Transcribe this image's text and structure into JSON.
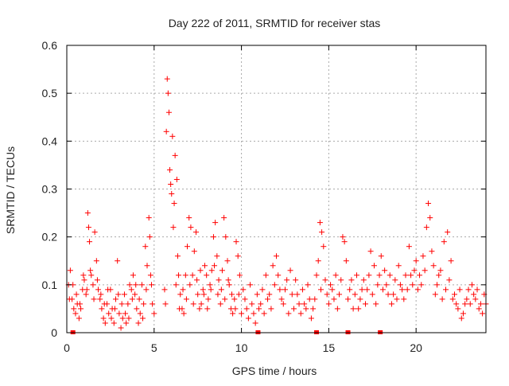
{
  "chart_data": {
    "type": "scatter",
    "title": "Day 222 of 2011, SRMTID for receiver stas",
    "xlabel": "GPS time / hours",
    "ylabel": "SRMTID / TECUs",
    "xlim": [
      0,
      24
    ],
    "ylim": [
      0,
      0.6
    ],
    "x_ticks": [
      0,
      5,
      10,
      15,
      20
    ],
    "x_tick_labels": [
      "0",
      "5",
      "10",
      "15",
      "20"
    ],
    "y_ticks": [
      0,
      0.1,
      0.2,
      0.3,
      0.4,
      0.5,
      0.6
    ],
    "y_tick_labels": [
      "0",
      "0.1",
      "0.2",
      "0.3",
      "0.4",
      "0.5",
      "0.6"
    ],
    "grid": true,
    "marker": "plus",
    "marker_color": "#ff0000",
    "series": [
      {
        "name": "stas",
        "points": [
          [
            0.1,
            0.1
          ],
          [
            0.2,
            0.13
          ],
          [
            0.3,
            0.07
          ],
          [
            0.4,
            0.05
          ],
          [
            0.5,
            0.04
          ],
          [
            0.6,
            0.06
          ],
          [
            0.7,
            0.03
          ],
          [
            0.8,
            0.05
          ],
          [
            0.9,
            0.09
          ],
          [
            1.0,
            0.11
          ],
          [
            1.1,
            0.08
          ],
          [
            1.2,
            0.25
          ],
          [
            1.25,
            0.22
          ],
          [
            1.3,
            0.19
          ],
          [
            1.4,
            0.12
          ],
          [
            1.5,
            0.1
          ],
          [
            1.6,
            0.21
          ],
          [
            1.7,
            0.15
          ],
          [
            1.8,
            0.09
          ],
          [
            1.9,
            0.07
          ],
          [
            2.0,
            0.05
          ],
          [
            2.1,
            0.03
          ],
          [
            2.2,
            0.02
          ],
          [
            2.3,
            0.06
          ],
          [
            2.4,
            0.04
          ],
          [
            2.5,
            0.09
          ],
          [
            2.6,
            0.05
          ],
          [
            2.7,
            0.02
          ],
          [
            2.8,
            0.07
          ],
          [
            2.9,
            0.15
          ],
          [
            3.0,
            0.04
          ],
          [
            3.1,
            0.01
          ],
          [
            3.2,
            0.03
          ],
          [
            3.3,
            0.08
          ],
          [
            3.4,
            0.02
          ],
          [
            3.5,
            0.06
          ],
          [
            3.6,
            0.1
          ],
          [
            3.7,
            0.09
          ],
          [
            3.8,
            0.12
          ],
          [
            3.9,
            0.08
          ],
          [
            4.0,
            0.05
          ],
          [
            4.1,
            0.02
          ],
          [
            4.2,
            0.04
          ],
          [
            4.3,
            0.1
          ],
          [
            4.4,
            0.06
          ],
          [
            4.5,
            0.18
          ],
          [
            4.6,
            0.14
          ],
          [
            4.7,
            0.24
          ],
          [
            4.75,
            0.2
          ],
          [
            4.8,
            0.12
          ],
          [
            4.9,
            0.06
          ],
          [
            5.0,
            0.04
          ],
          [
            5.6,
            0.09
          ],
          [
            5.7,
            0.42
          ],
          [
            5.75,
            0.53
          ],
          [
            5.8,
            0.5
          ],
          [
            5.85,
            0.46
          ],
          [
            5.9,
            0.34
          ],
          [
            5.95,
            0.31
          ],
          [
            6.0,
            0.29
          ],
          [
            6.05,
            0.41
          ],
          [
            6.1,
            0.22
          ],
          [
            6.15,
            0.27
          ],
          [
            6.2,
            0.37
          ],
          [
            6.3,
            0.32
          ],
          [
            6.35,
            0.16
          ],
          [
            6.4,
            0.12
          ],
          [
            6.5,
            0.08
          ],
          [
            6.6,
            0.05
          ],
          [
            6.7,
            0.04
          ],
          [
            6.8,
            0.12
          ],
          [
            6.9,
            0.18
          ],
          [
            7.0,
            0.24
          ],
          [
            7.1,
            0.22
          ],
          [
            7.2,
            0.12
          ],
          [
            7.3,
            0.17
          ],
          [
            7.4,
            0.21
          ],
          [
            7.5,
            0.08
          ],
          [
            7.6,
            0.05
          ],
          [
            7.7,
            0.06
          ],
          [
            7.8,
            0.09
          ],
          [
            7.9,
            0.14
          ],
          [
            8.0,
            0.12
          ],
          [
            8.1,
            0.07
          ],
          [
            8.2,
            0.1
          ],
          [
            8.3,
            0.13
          ],
          [
            8.4,
            0.2
          ],
          [
            8.5,
            0.23
          ],
          [
            8.6,
            0.16
          ],
          [
            8.7,
            0.11
          ],
          [
            8.8,
            0.06
          ],
          [
            8.9,
            0.13
          ],
          [
            9.0,
            0.24
          ],
          [
            9.1,
            0.2
          ],
          [
            9.2,
            0.15
          ],
          [
            9.3,
            0.1
          ],
          [
            9.4,
            0.05
          ],
          [
            9.5,
            0.04
          ],
          [
            9.6,
            0.07
          ],
          [
            9.7,
            0.19
          ],
          [
            9.8,
            0.16
          ],
          [
            9.9,
            0.12
          ],
          [
            10.0,
            0.04
          ],
          [
            10.2,
            0.07
          ],
          [
            10.4,
            0.03
          ],
          [
            10.6,
            0.06
          ],
          [
            10.8,
            0.02
          ],
          [
            11.0,
            0.05
          ],
          [
            11.2,
            0.09
          ],
          [
            11.4,
            0.12
          ],
          [
            11.6,
            0.08
          ],
          [
            11.8,
            0.14
          ],
          [
            12.0,
            0.16
          ],
          [
            12.2,
            0.09
          ],
          [
            12.4,
            0.06
          ],
          [
            12.6,
            0.11
          ],
          [
            12.8,
            0.13
          ],
          [
            13.0,
            0.05
          ],
          [
            13.2,
            0.08
          ],
          [
            13.4,
            0.04
          ],
          [
            13.6,
            0.06
          ],
          [
            13.8,
            0.1
          ],
          [
            14.0,
            0.03
          ],
          [
            14.2,
            0.07
          ],
          [
            14.3,
            0.12
          ],
          [
            14.4,
            0.15
          ],
          [
            14.5,
            0.23
          ],
          [
            14.6,
            0.21
          ],
          [
            14.7,
            0.18
          ],
          [
            14.8,
            0.11
          ],
          [
            15.0,
            0.06
          ],
          [
            15.2,
            0.09
          ],
          [
            15.4,
            0.12
          ],
          [
            15.6,
            0.08
          ],
          [
            15.8,
            0.2
          ],
          [
            15.9,
            0.19
          ],
          [
            16.0,
            0.15
          ],
          [
            16.2,
            0.09
          ],
          [
            16.4,
            0.05
          ],
          [
            16.6,
            0.12
          ],
          [
            16.8,
            0.07
          ],
          [
            17.0,
            0.11
          ],
          [
            17.2,
            0.09
          ],
          [
            17.4,
            0.17
          ],
          [
            17.6,
            0.14
          ],
          [
            17.8,
            0.1
          ],
          [
            18.0,
            0.16
          ],
          [
            18.2,
            0.13
          ],
          [
            18.4,
            0.08
          ],
          [
            18.6,
            0.06
          ],
          [
            18.8,
            0.11
          ],
          [
            19.0,
            0.14
          ],
          [
            19.2,
            0.09
          ],
          [
            19.4,
            0.12
          ],
          [
            19.6,
            0.18
          ],
          [
            19.8,
            0.1
          ],
          [
            20.0,
            0.15
          ],
          [
            20.2,
            0.12
          ],
          [
            20.4,
            0.16
          ],
          [
            20.6,
            0.22
          ],
          [
            20.7,
            0.27
          ],
          [
            20.8,
            0.24
          ],
          [
            20.9,
            0.17
          ],
          [
            21.0,
            0.14
          ],
          [
            21.2,
            0.1
          ],
          [
            21.4,
            0.13
          ],
          [
            21.6,
            0.19
          ],
          [
            21.8,
            0.21
          ],
          [
            22.0,
            0.15
          ],
          [
            22.2,
            0.08
          ],
          [
            22.4,
            0.05
          ],
          [
            22.6,
            0.03
          ],
          [
            22.8,
            0.06
          ],
          [
            23.0,
            0.09
          ],
          [
            23.2,
            0.1
          ],
          [
            23.4,
            0.07
          ],
          [
            23.6,
            0.05
          ],
          [
            23.8,
            0.04
          ],
          [
            24.0,
            0.06
          ],
          [
            0.15,
            0.07
          ],
          [
            0.35,
            0.1
          ],
          [
            0.55,
            0.08
          ],
          [
            0.75,
            0.06
          ],
          [
            0.95,
            0.12
          ],
          [
            1.15,
            0.09
          ],
          [
            1.35,
            0.13
          ],
          [
            1.55,
            0.07
          ],
          [
            1.75,
            0.11
          ],
          [
            1.95,
            0.08
          ],
          [
            2.15,
            0.06
          ],
          [
            2.35,
            0.09
          ],
          [
            2.55,
            0.03
          ],
          [
            2.75,
            0.05
          ],
          [
            2.95,
            0.08
          ],
          [
            3.15,
            0.06
          ],
          [
            3.35,
            0.04
          ],
          [
            3.55,
            0.03
          ],
          [
            3.75,
            0.07
          ],
          [
            3.95,
            0.1
          ],
          [
            4.15,
            0.07
          ],
          [
            4.35,
            0.03
          ],
          [
            4.55,
            0.09
          ],
          [
            4.85,
            0.1
          ],
          [
            5.65,
            0.06
          ],
          [
            6.25,
            0.1
          ],
          [
            6.45,
            0.05
          ],
          [
            6.65,
            0.09
          ],
          [
            6.85,
            0.07
          ],
          [
            7.05,
            0.1
          ],
          [
            7.25,
            0.06
          ],
          [
            7.45,
            0.11
          ],
          [
            7.65,
            0.13
          ],
          [
            7.85,
            0.08
          ],
          [
            8.05,
            0.05
          ],
          [
            8.25,
            0.09
          ],
          [
            8.45,
            0.14
          ],
          [
            8.65,
            0.08
          ],
          [
            8.85,
            0.09
          ],
          [
            9.05,
            0.07
          ],
          [
            9.25,
            0.11
          ],
          [
            9.45,
            0.08
          ],
          [
            9.65,
            0.05
          ],
          [
            9.85,
            0.08
          ],
          [
            10.1,
            0.09
          ],
          [
            10.3,
            0.05
          ],
          [
            10.5,
            0.1
          ],
          [
            10.7,
            0.04
          ],
          [
            10.9,
            0.08
          ],
          [
            11.1,
            0.06
          ],
          [
            11.3,
            0.04
          ],
          [
            11.5,
            0.07
          ],
          [
            11.7,
            0.05
          ],
          [
            11.9,
            0.1
          ],
          [
            12.1,
            0.12
          ],
          [
            12.3,
            0.07
          ],
          [
            12.5,
            0.09
          ],
          [
            12.7,
            0.04
          ],
          [
            12.9,
            0.08
          ],
          [
            13.1,
            0.11
          ],
          [
            13.3,
            0.06
          ],
          [
            13.5,
            0.09
          ],
          [
            13.7,
            0.05
          ],
          [
            13.9,
            0.07
          ],
          [
            14.1,
            0.05
          ],
          [
            14.55,
            0.09
          ],
          [
            14.9,
            0.08
          ],
          [
            15.1,
            0.1
          ],
          [
            15.3,
            0.07
          ],
          [
            15.5,
            0.05
          ],
          [
            15.7,
            0.11
          ],
          [
            16.1,
            0.07
          ],
          [
            16.3,
            0.11
          ],
          [
            16.5,
            0.08
          ],
          [
            16.7,
            0.05
          ],
          [
            16.9,
            0.09
          ],
          [
            17.1,
            0.06
          ],
          [
            17.3,
            0.12
          ],
          [
            17.5,
            0.08
          ],
          [
            17.7,
            0.06
          ],
          [
            17.9,
            0.12
          ],
          [
            18.1,
            0.09
          ],
          [
            18.3,
            0.1
          ],
          [
            18.5,
            0.12
          ],
          [
            18.7,
            0.08
          ],
          [
            18.9,
            0.07
          ],
          [
            19.1,
            0.1
          ],
          [
            19.3,
            0.07
          ],
          [
            19.5,
            0.09
          ],
          [
            19.7,
            0.12
          ],
          [
            19.9,
            0.13
          ],
          [
            20.1,
            0.09
          ],
          [
            20.3,
            0.1
          ],
          [
            20.5,
            0.13
          ],
          [
            21.1,
            0.08
          ],
          [
            21.3,
            0.12
          ],
          [
            21.5,
            0.07
          ],
          [
            21.7,
            0.09
          ],
          [
            21.9,
            0.11
          ],
          [
            22.1,
            0.07
          ],
          [
            22.3,
            0.06
          ],
          [
            22.5,
            0.09
          ],
          [
            22.7,
            0.04
          ],
          [
            22.9,
            0.07
          ],
          [
            23.1,
            0.06
          ],
          [
            23.3,
            0.08
          ],
          [
            23.5,
            0.09
          ],
          [
            23.7,
            0.06
          ],
          [
            23.9,
            0.08
          ]
        ]
      }
    ],
    "zero_markers_x": [
      0.35,
      10.95,
      14.3,
      16.1,
      17.95
    ]
  }
}
